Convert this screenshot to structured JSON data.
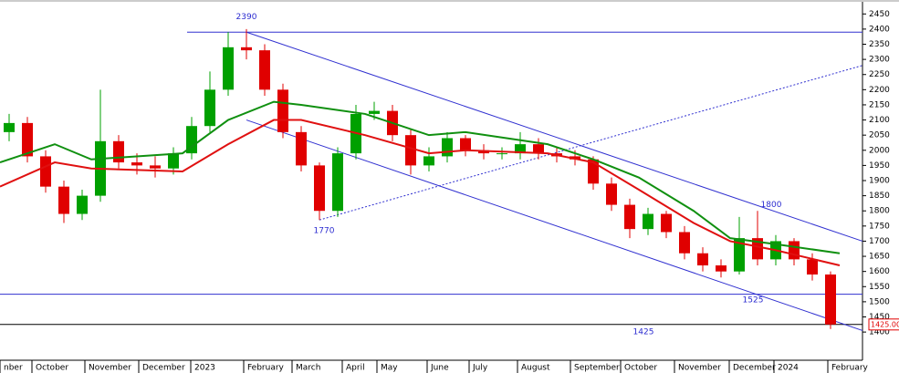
{
  "chart_data": {
    "type": "candlestick",
    "xlim": [
      0,
      47.25
    ],
    "ylim": [
      1307,
      2490
    ],
    "yticks": [
      1400,
      1450,
      1500,
      1550,
      1600,
      1650,
      1700,
      1750,
      1800,
      1850,
      1900,
      1950,
      2000,
      2050,
      2100,
      2150,
      2200,
      2250,
      2300,
      2350,
      2400,
      2450
    ],
    "xticks": [
      {
        "value": 0,
        "label": "nber"
      },
      {
        "value": 1.75,
        "label": "October"
      },
      {
        "value": 4.65,
        "label": "November"
      },
      {
        "value": 7.6,
        "label": "December"
      },
      {
        "value": 10.45,
        "label": "2023"
      },
      {
        "value": 13.35,
        "label": "February"
      },
      {
        "value": 16,
        "label": "March"
      },
      {
        "value": 18.75,
        "label": "April"
      },
      {
        "value": 20.65,
        "label": "May"
      },
      {
        "value": 23.4,
        "label": "June"
      },
      {
        "value": 25.7,
        "label": "July"
      },
      {
        "value": 28.35,
        "label": "August"
      },
      {
        "value": 31.25,
        "label": "September"
      },
      {
        "value": 34,
        "label": "October"
      },
      {
        "value": 36.95,
        "label": "November"
      },
      {
        "value": 39.95,
        "label": "December"
      },
      {
        "value": 42.4,
        "label": "2024"
      },
      {
        "value": 45.35,
        "label": "February"
      }
    ],
    "up_color": "#00a000",
    "down_color": "#e00000",
    "open": [
      2060,
      2090,
      1980,
      1880,
      1790,
      1850,
      2030,
      1960,
      1950,
      1940,
      1990,
      2080,
      2200,
      2340,
      2330,
      2200,
      2060,
      1950,
      1800,
      1990,
      2120,
      2130,
      2050,
      1950,
      1980,
      2040,
      2000,
      1990,
      1990,
      2020,
      1990,
      1980,
      1970,
      1890,
      1820,
      1740,
      1790,
      1730,
      1660,
      1620,
      1600,
      1710,
      1640,
      1700,
      1640,
      1590
    ],
    "high": [
      2120,
      2110,
      2000,
      1900,
      1870,
      2200,
      2050,
      1990,
      1980,
      2010,
      2110,
      2260,
      2390,
      2400,
      2350,
      2220,
      2080,
      1960,
      2010,
      2150,
      2160,
      2150,
      2070,
      2010,
      2060,
      2050,
      2020,
      2010,
      2060,
      2040,
      2010,
      2000,
      1980,
      1910,
      1840,
      1810,
      1800,
      1750,
      1680,
      1640,
      1780,
      1800,
      1720,
      1710,
      1660,
      1600
    ],
    "low": [
      2030,
      1960,
      1860,
      1760,
      1770,
      1830,
      1940,
      1920,
      1910,
      1920,
      1970,
      2060,
      2180,
      2300,
      2180,
      2040,
      1930,
      1770,
      1780,
      1970,
      2100,
      2030,
      1920,
      1930,
      1960,
      1980,
      1970,
      1970,
      1970,
      1970,
      1960,
      1950,
      1870,
      1800,
      1710,
      1720,
      1710,
      1640,
      1600,
      1580,
      1590,
      1620,
      1620,
      1620,
      1570,
      1410
    ],
    "close": [
      2090,
      1980,
      1880,
      1790,
      1850,
      2030,
      1960,
      1950,
      1940,
      1990,
      2080,
      2200,
      2340,
      2330,
      2200,
      2060,
      1950,
      1800,
      1990,
      2120,
      2130,
      2050,
      1950,
      1980,
      2040,
      2000,
      1990,
      1990,
      2020,
      1990,
      1980,
      1970,
      1890,
      1820,
      1740,
      1790,
      1730,
      1660,
      1620,
      1600,
      1710,
      1640,
      1700,
      1640,
      1590,
      1425
    ],
    "series": [
      {
        "color": "#109010",
        "x": [
          0,
          3,
          5,
          10,
          12.5,
          15,
          16.5,
          20,
          23.5,
          25.5,
          30,
          32.5,
          35,
          38,
          40,
          42.5,
          46
        ],
        "values": [
          1960,
          2020,
          1970,
          1990,
          2100,
          2160,
          2150,
          2120,
          2050,
          2060,
          2020,
          1970,
          1910,
          1800,
          1710,
          1690,
          1660
        ]
      },
      {
        "color": "#e01010",
        "x": [
          0,
          3,
          5,
          10,
          12.5,
          15,
          16.5,
          20,
          23.5,
          25.5,
          30,
          32.5,
          35,
          38,
          40,
          42.5,
          46
        ],
        "values": [
          1880,
          1960,
          1940,
          1930,
          2020,
          2100,
          2100,
          2050,
          1990,
          2000,
          1990,
          1960,
          1870,
          1760,
          1700,
          1670,
          1620
        ]
      }
    ],
    "lines": [
      {
        "style": "solid",
        "x": [
          13.5,
          47.25
        ],
        "y": [
          2390,
          1700
        ]
      },
      {
        "style": "solid",
        "x": [
          13.5,
          47.25
        ],
        "y": [
          2100,
          1405
        ]
      },
      {
        "style": "dotted",
        "x": [
          17.5,
          47.25
        ],
        "y": [
          1770,
          2280
        ]
      }
    ],
    "hlines": [
      {
        "value": 2390,
        "x0": 10.25,
        "color": "#3030d0"
      },
      {
        "value": 1525,
        "x0": 0,
        "color": "#3030d0"
      },
      {
        "value": 1425,
        "x0": 0,
        "color": "#000000"
      }
    ],
    "annotations": [
      {
        "text": "2390",
        "x": 13.5,
        "y": 2440
      },
      {
        "text": "1770",
        "x": 17.75,
        "y": 1735
      },
      {
        "text": "1800",
        "x": 42.25,
        "y": 1820
      },
      {
        "text": "1525",
        "x": 41.25,
        "y": 1505
      },
      {
        "text": "1425",
        "x": 35.25,
        "y": 1400
      }
    ],
    "last_price": {
      "value": 1425,
      "label": "1425.00"
    }
  }
}
